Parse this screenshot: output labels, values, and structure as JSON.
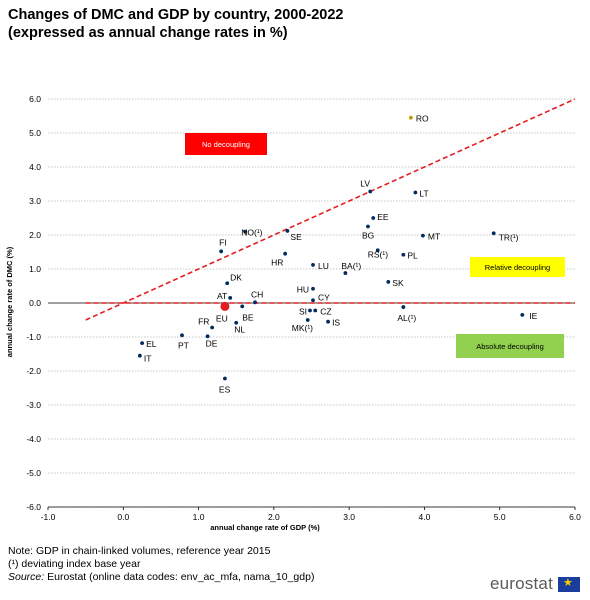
{
  "header": {
    "title_line1": "Changes of DMC and GDP by country, 2000-2022",
    "title_line2": "(expressed as annual change rates in %)"
  },
  "notes": {
    "line1": "Note: GDP in chain-linked volumes, reference year 2015",
    "line2": "(¹) deviating index base year",
    "source_label": "Source:",
    "source_text": " Eurostat (online data codes: env_ac_mfa, nama_10_gdp)"
  },
  "brand": {
    "name": "eurostat"
  },
  "colors": {
    "reference_line": "#e41e20",
    "point": "#002b5c",
    "eu_point": "#e41e20",
    "box_no_decoupling": "#ff0000",
    "box_relative": "#ffff00",
    "box_absolute": "#92d050"
  },
  "chart_data": {
    "type": "scatter",
    "xlabel": "annual change rate of GDP (%)",
    "ylabel": "annual change rate of DMC (%)",
    "xlim": [
      -1.0,
      6.0
    ],
    "ylim": [
      -6.0,
      6.0
    ],
    "x_ticks": [
      "-1.0",
      "0.0",
      "1.0",
      "2.0",
      "3.0",
      "4.0",
      "5.0",
      "6.0"
    ],
    "y_ticks": [
      "6.0",
      "5.0",
      "4.0",
      "3.0",
      "2.0",
      "1.0",
      "0.0",
      "-1.0",
      "-2.0",
      "-3.0",
      "-4.0",
      "-5.0",
      "-6.0"
    ],
    "grid": "horizontal dotted",
    "reference_lines": [
      {
        "kind": "diagonal",
        "from": [
          -0.5,
          -0.5
        ],
        "to": [
          6.0,
          6.0
        ]
      },
      {
        "kind": "horizontal",
        "y": 0.0,
        "from_x": -0.5,
        "to_x": 6.0
      }
    ],
    "zones": [
      {
        "label": "No decoupling",
        "color": "#ff0000"
      },
      {
        "label": "Relative decoupling",
        "color": "#ffff00"
      },
      {
        "label": "Absolute decoupling",
        "color": "#92d050"
      }
    ],
    "points": [
      {
        "label": "RO",
        "x": 3.82,
        "y": 5.45,
        "color": "#b8a000"
      },
      {
        "label": "LV",
        "x": 3.28,
        "y": 3.28
      },
      {
        "label": "LT",
        "x": 3.88,
        "y": 3.25
      },
      {
        "label": "EE",
        "x": 3.32,
        "y": 2.5
      },
      {
        "label": "BG",
        "x": 3.25,
        "y": 2.25
      },
      {
        "label": "MT",
        "x": 3.98,
        "y": 1.98
      },
      {
        "label": "TR(¹)",
        "x": 4.92,
        "y": 2.05
      },
      {
        "label": "NO(¹)",
        "x": 1.62,
        "y": 2.1
      },
      {
        "label": "SE",
        "x": 2.18,
        "y": 2.12
      },
      {
        "label": "FI",
        "x": 1.3,
        "y": 1.52
      },
      {
        "label": "HR",
        "x": 2.15,
        "y": 1.45
      },
      {
        "label": "LU",
        "x": 2.52,
        "y": 1.12
      },
      {
        "label": "BA(¹)",
        "x": 2.95,
        "y": 0.88
      },
      {
        "label": "RS(¹)",
        "x": 3.38,
        "y": 1.55
      },
      {
        "label": "PL",
        "x": 3.72,
        "y": 1.42
      },
      {
        "label": "SK",
        "x": 3.52,
        "y": 0.62
      },
      {
        "label": "DK",
        "x": 1.38,
        "y": 0.58
      },
      {
        "label": "HU",
        "x": 2.52,
        "y": 0.42
      },
      {
        "label": "CY",
        "x": 2.52,
        "y": 0.08
      },
      {
        "label": "AT",
        "x": 1.42,
        "y": 0.15
      },
      {
        "label": "CH",
        "x": 1.75,
        "y": 0.02
      },
      {
        "label": "EU",
        "x": 1.35,
        "y": -0.1,
        "color": "#e41e20",
        "size": "large"
      },
      {
        "label": "BE",
        "x": 1.58,
        "y": -0.1
      },
      {
        "label": "SI",
        "x": 2.48,
        "y": -0.22
      },
      {
        "label": "CZ",
        "x": 2.55,
        "y": -0.22
      },
      {
        "label": "MK(¹)",
        "x": 2.45,
        "y": -0.5
      },
      {
        "label": "IS",
        "x": 2.72,
        "y": -0.55
      },
      {
        "label": "AL(¹)",
        "x": 3.72,
        "y": -0.12
      },
      {
        "label": "IE",
        "x": 5.3,
        "y": -0.35
      },
      {
        "label": "FR",
        "x": 1.18,
        "y": -0.72
      },
      {
        "label": "NL",
        "x": 1.5,
        "y": -0.58
      },
      {
        "label": "DE",
        "x": 1.12,
        "y": -0.98
      },
      {
        "label": "PT",
        "x": 0.78,
        "y": -0.95
      },
      {
        "label": "EL",
        "x": 0.25,
        "y": -1.18
      },
      {
        "label": "IT",
        "x": 0.22,
        "y": -1.55
      },
      {
        "label": "ES",
        "x": 1.35,
        "y": -2.22
      }
    ]
  }
}
